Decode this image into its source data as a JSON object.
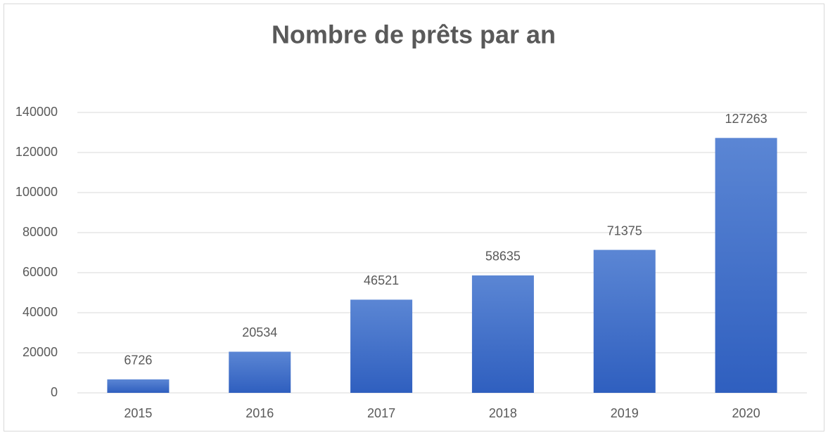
{
  "chart_data": {
    "type": "bar",
    "title": "Nombre de prêts par an",
    "categories": [
      "2015",
      "2016",
      "2017",
      "2018",
      "2019",
      "2020"
    ],
    "values": [
      6726,
      20534,
      46521,
      58635,
      71375,
      127263
    ],
    "color": "#4472c4",
    "ylim": [
      0,
      140000
    ],
    "yticks": [
      0,
      20000,
      40000,
      60000,
      80000,
      100000,
      120000,
      140000
    ],
    "grid": true
  }
}
